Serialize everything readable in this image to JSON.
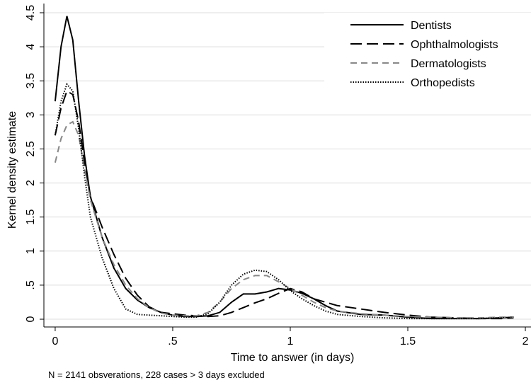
{
  "chart_data": {
    "type": "line",
    "y_label": "Kernel density estimate",
    "x_label": "Time to answer (in days)",
    "note": "N = 2141 obsverations, 228 cases > 3 days excluded",
    "x": [
      0,
      0.025,
      0.05,
      0.075,
      0.1,
      0.125,
      0.15,
      0.2,
      0.25,
      0.3,
      0.35,
      0.4,
      0.45,
      0.5,
      0.55,
      0.6,
      0.65,
      0.7,
      0.75,
      0.8,
      0.85,
      0.9,
      0.95,
      1,
      1.05,
      1.1,
      1.15,
      1.2,
      1.3,
      1.4,
      1.5,
      1.6,
      1.7,
      1.8,
      1.9,
      1.95
    ],
    "series": [
      {
        "name": "Dentists",
        "color": "#000000",
        "dash": "solid",
        "values": [
          3.2,
          4.0,
          4.45,
          4.1,
          3.2,
          2.4,
          1.8,
          1.2,
          0.75,
          0.45,
          0.28,
          0.17,
          0.1,
          0.06,
          0.04,
          0.04,
          0.05,
          0.1,
          0.25,
          0.37,
          0.37,
          0.4,
          0.45,
          0.43,
          0.38,
          0.3,
          0.2,
          0.12,
          0.07,
          0.06,
          0.03,
          0.01,
          0.01,
          0.01,
          0.02,
          0.03
        ]
      },
      {
        "name": "Ophthalmologists",
        "color": "#000000",
        "dash": "long-dash",
        "values": [
          2.7,
          3.1,
          3.35,
          3.3,
          2.9,
          2.3,
          1.8,
          1.35,
          0.95,
          0.6,
          0.35,
          0.18,
          0.1,
          0.08,
          0.06,
          0.05,
          0.04,
          0.05,
          0.1,
          0.17,
          0.24,
          0.3,
          0.38,
          0.45,
          0.4,
          0.3,
          0.25,
          0.2,
          0.15,
          0.1,
          0.06,
          0.03,
          0.02,
          0.01,
          0.01,
          0.02
        ]
      },
      {
        "name": "Dermatologists",
        "color": "#888888",
        "dash": "dash",
        "values": [
          2.3,
          2.65,
          2.85,
          2.9,
          2.7,
          2.2,
          1.75,
          1.2,
          0.8,
          0.5,
          0.3,
          0.17,
          0.09,
          0.06,
          0.05,
          0.05,
          0.1,
          0.25,
          0.45,
          0.58,
          0.64,
          0.64,
          0.55,
          0.45,
          0.35,
          0.25,
          0.17,
          0.12,
          0.08,
          0.06,
          0.04,
          0.03,
          0.02,
          0.02,
          0.03,
          0.03
        ]
      },
      {
        "name": "Orthopedists",
        "color": "#000000",
        "dash": "dot",
        "values": [
          2.7,
          3.2,
          3.45,
          3.35,
          2.8,
          2.1,
          1.5,
          0.9,
          0.45,
          0.15,
          0.07,
          0.06,
          0.05,
          0.04,
          0.03,
          0.03,
          0.08,
          0.25,
          0.5,
          0.66,
          0.72,
          0.7,
          0.58,
          0.42,
          0.3,
          0.2,
          0.12,
          0.07,
          0.04,
          0.02,
          0.01,
          0.01,
          0.01,
          0.01,
          0.02,
          0.03
        ]
      }
    ],
    "xlim": [
      -0.048,
      2.024
    ],
    "ylim": [
      -0.114,
      4.635
    ],
    "xticks": [
      0,
      {
        "value": 0.5,
        "label": ".5"
      },
      1,
      1.5,
      2
    ],
    "yticks": [
      0,
      {
        "value": 0.5,
        "label": ".5"
      },
      1,
      1.5,
      2,
      2.5,
      3,
      3.5,
      4,
      4.5
    ],
    "grid": true,
    "legend": "top-right"
  }
}
